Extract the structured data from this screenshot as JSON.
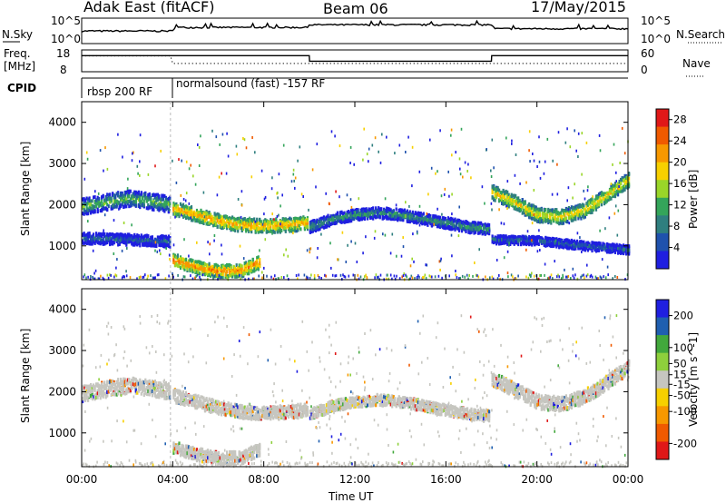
{
  "header": {
    "station": "Adak East (fitACF)",
    "beam": "Beam 06",
    "date": "17/May/2015"
  },
  "strip_labels": {
    "nsky": "N.Sky",
    "nsearch": "N.Search",
    "freq_line1": "Freq.",
    "freq_line2": "[MHz]",
    "nave": "Nave",
    "cpid": "CPID",
    "nsky_ticks": [
      "10^5",
      "10^0"
    ],
    "freq_ticks": [
      "18",
      "8"
    ],
    "nave_ticks": [
      "60",
      "0"
    ]
  },
  "cpid_segments": [
    {
      "label": "rbsp 200 RF",
      "start_hour": 0.0
    },
    {
      "label": "normalsound (fast) -157 RF",
      "start_hour": 3.9
    }
  ],
  "x_axis": {
    "label": "Time UT",
    "ticks": [
      "00:00",
      "04:00",
      "08:00",
      "12:00",
      "16:00",
      "20:00",
      "00:00"
    ]
  },
  "colors": {
    "power": [
      "#1f1fe0",
      "#1f52ad",
      "#2f7f7f",
      "#34a55a",
      "#9ad629",
      "#f7d000",
      "#f79800",
      "#f05a00",
      "#e01818"
    ],
    "velocity": [
      "#e01818",
      "#f05a00",
      "#f79800",
      "#f7d000",
      "#c6c6c0",
      "#8ed03c",
      "#42a83c",
      "#1f5fb0",
      "#1f1fe0"
    ]
  },
  "chart_data": [
    {
      "type": "line",
      "title": "Adak East (fitACF)",
      "subtitle": "Beam 06",
      "ylabel": "N.Sky",
      "ylim": [
        1,
        100000
      ],
      "log_scale": true,
      "x_range_hours": [
        0,
        24
      ],
      "series": [
        {
          "name": "N.Sky",
          "x": [
            0,
            4,
            4.1,
            10,
            10.1,
            18,
            18.1,
            24
          ],
          "values": [
            300,
            300,
            2000,
            2000,
            8000,
            8000,
            1000,
            1000
          ]
        }
      ]
    },
    {
      "type": "line",
      "ylabel": "Freq. [MHz]",
      "ylim": [
        8,
        18
      ],
      "x_range_hours": [
        0,
        24
      ],
      "series": [
        {
          "name": "Freq.",
          "x": [
            0,
            10,
            10.01,
            18,
            18.01,
            24
          ],
          "values": [
            15.6,
            15.6,
            12.8,
            12.8,
            15.6,
            15.6
          ]
        },
        {
          "name": "Nave",
          "x": [
            0,
            3.9,
            4,
            24
          ],
          "values": [
            45,
            45,
            22,
            22
          ]
        }
      ]
    },
    {
      "type": "heatmap",
      "title": "Power [dB]",
      "xlabel": "Time UT",
      "ylabel": "Slant Range [km]",
      "x_range_hours": [
        0,
        24
      ],
      "ylim": [
        180,
        4500
      ],
      "colorbar_ticks": [
        4,
        8,
        12,
        16,
        20,
        24,
        28
      ],
      "colorbar_range": [
        0,
        30
      ],
      "bands": [
        {
          "x": [
            0,
            1,
            2,
            3,
            3.9
          ],
          "range": [
            1950,
            2050,
            2150,
            2080,
            2000
          ],
          "width": 380,
          "value": 14
        },
        {
          "x": [
            4,
            5,
            6,
            7,
            8,
            9,
            9.9
          ],
          "range": [
            1900,
            1750,
            1600,
            1500,
            1480,
            1500,
            1550
          ],
          "width": 320,
          "value": 22
        },
        {
          "x": [
            10,
            11,
            12,
            13,
            14,
            15,
            16,
            17,
            17.9
          ],
          "range": [
            1450,
            1650,
            1750,
            1800,
            1750,
            1650,
            1550,
            1450,
            1400
          ],
          "width": 260,
          "value": 12
        },
        {
          "x": [
            18,
            19,
            20,
            21,
            22,
            23,
            24
          ],
          "range": [
            2300,
            2050,
            1750,
            1700,
            1850,
            2200,
            2600
          ],
          "width": 340,
          "value": 20
        },
        {
          "x": [
            4,
            5,
            6,
            7,
            7.8
          ],
          "range": [
            650,
            480,
            380,
            400,
            600
          ],
          "width": 300,
          "value": 24
        },
        {
          "x": [
            0,
            2,
            3.9
          ],
          "range": [
            1180,
            1150,
            1100
          ],
          "width": 260,
          "value": 8
        },
        {
          "x": [
            18,
            20,
            22,
            24
          ],
          "range": [
            1150,
            1120,
            1000,
            900
          ],
          "width": 200,
          "value": 8
        }
      ]
    },
    {
      "type": "heatmap",
      "title": "Velocity [m s^-1]",
      "xlabel": "Time UT",
      "ylabel": "Slant Range [km]",
      "x_range_hours": [
        0,
        24
      ],
      "ylim": [
        180,
        4500
      ],
      "colorbar_ticks": [
        -200,
        -100,
        -50,
        -15,
        15,
        50,
        100,
        200
      ],
      "colorbar_range": [
        -250,
        250
      ],
      "bands": [
        {
          "x": [
            0,
            1,
            2,
            3,
            3.9
          ],
          "range": [
            1950,
            2050,
            2150,
            2080,
            2000
          ],
          "width": 380,
          "value": 0
        },
        {
          "x": [
            4,
            5,
            6,
            7,
            8,
            9,
            9.9
          ],
          "range": [
            1900,
            1750,
            1600,
            1500,
            1480,
            1500,
            1550
          ],
          "width": 320,
          "value": 0
        },
        {
          "x": [
            10,
            11,
            12,
            13,
            14,
            15,
            16,
            17,
            17.9
          ],
          "range": [
            1450,
            1650,
            1750,
            1800,
            1750,
            1650,
            1550,
            1450,
            1400
          ],
          "width": 260,
          "value": 0
        },
        {
          "x": [
            18,
            19,
            20,
            21,
            22,
            23,
            24
          ],
          "range": [
            2300,
            2050,
            1750,
            1700,
            1850,
            2200,
            2600
          ],
          "width": 340,
          "value": 0
        },
        {
          "x": [
            4,
            5,
            6,
            7,
            7.8
          ],
          "range": [
            650,
            480,
            380,
            400,
            600
          ],
          "width": 300,
          "value": 0
        }
      ]
    }
  ]
}
